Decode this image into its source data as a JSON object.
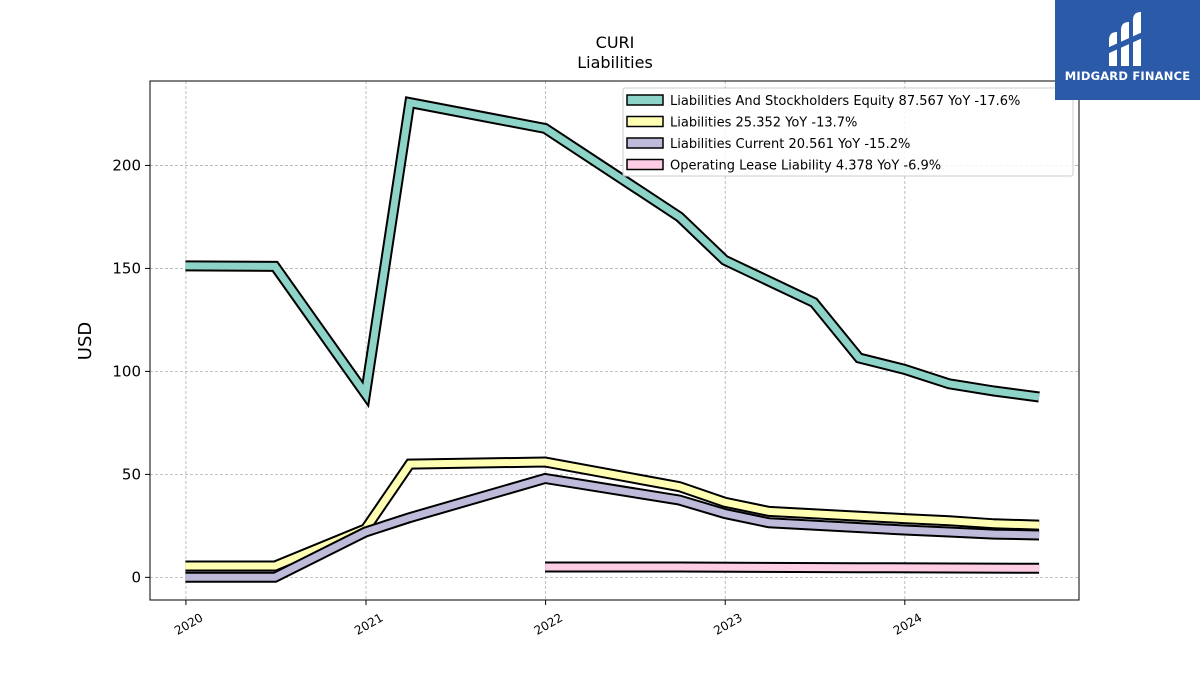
{
  "brand": {
    "name": "MIDGARD FINANCE"
  },
  "chart_data": {
    "type": "line",
    "title": "CURI",
    "subtitle": "Liabilities",
    "ylabel": "USD",
    "xlim": [
      "2019-10-20",
      "2024-12-20"
    ],
    "ylim": [
      -11,
      241
    ],
    "x_ticks": [
      "2020",
      "2021",
      "2022",
      "2023",
      "2024"
    ],
    "y_ticks": [
      0,
      50,
      100,
      150,
      200
    ],
    "grid": true,
    "legend_position": "top-right",
    "series": [
      {
        "name": "Liabilities And Stockholders Equity",
        "legend": "Liabilities And Stockholders Equity  87.567 YoY -17.6%",
        "color": "#8dd3c7",
        "x": [
          "2019-12-31",
          "2020-06-30",
          "2020-12-31",
          "2021-03-31",
          "2021-12-31",
          "2022-09-30",
          "2022-12-31",
          "2023-06-30",
          "2023-09-30",
          "2023-12-31",
          "2024-03-31",
          "2024-06-30",
          "2024-09-30"
        ],
        "y": [
          151.2,
          151.0,
          89.0,
          230.5,
          218.0,
          175.0,
          154.0,
          133.5,
          106.5,
          101.0,
          94.0,
          90.5,
          87.567
        ]
      },
      {
        "name": "Liabilities",
        "legend": "Liabilities  25.352 YoY -13.7%",
        "color": "#ffffb3",
        "x": [
          "2019-12-31",
          "2020-06-30",
          "2020-12-31",
          "2021-03-31",
          "2021-12-31",
          "2022-09-30",
          "2022-12-31",
          "2023-03-31",
          "2023-12-31",
          "2024-03-31",
          "2024-06-30",
          "2024-09-30"
        ],
        "y": [
          5.5,
          5.5,
          23.5,
          55.0,
          56.0,
          44.0,
          36.5,
          32.0,
          28.5,
          27.5,
          26.0,
          25.352
        ]
      },
      {
        "name": "Liabilities Current",
        "legend": "Liabilities Current  20.561 YoY -15.2%",
        "color": "#bebada",
        "x": [
          "2019-12-31",
          "2020-06-30",
          "2020-12-31",
          "2021-03-31",
          "2021-12-31",
          "2022-09-30",
          "2022-12-31",
          "2023-03-31",
          "2023-12-31",
          "2024-03-31",
          "2024-06-30",
          "2024-09-30"
        ],
        "y": [
          0.0,
          0.0,
          22.0,
          29.0,
          48.0,
          37.5,
          31.0,
          26.5,
          23.0,
          22.0,
          21.0,
          20.561
        ]
      },
      {
        "name": "Operating Lease Liability",
        "legend": "Operating Lease Liability  4.378 YoY -6.9%",
        "color": "#fccde5",
        "x": [
          "2021-12-31",
          "2022-09-30",
          "2023-09-30",
          "2024-09-30"
        ],
        "y": [
          5.0,
          5.0,
          4.7,
          4.378
        ]
      }
    ]
  }
}
